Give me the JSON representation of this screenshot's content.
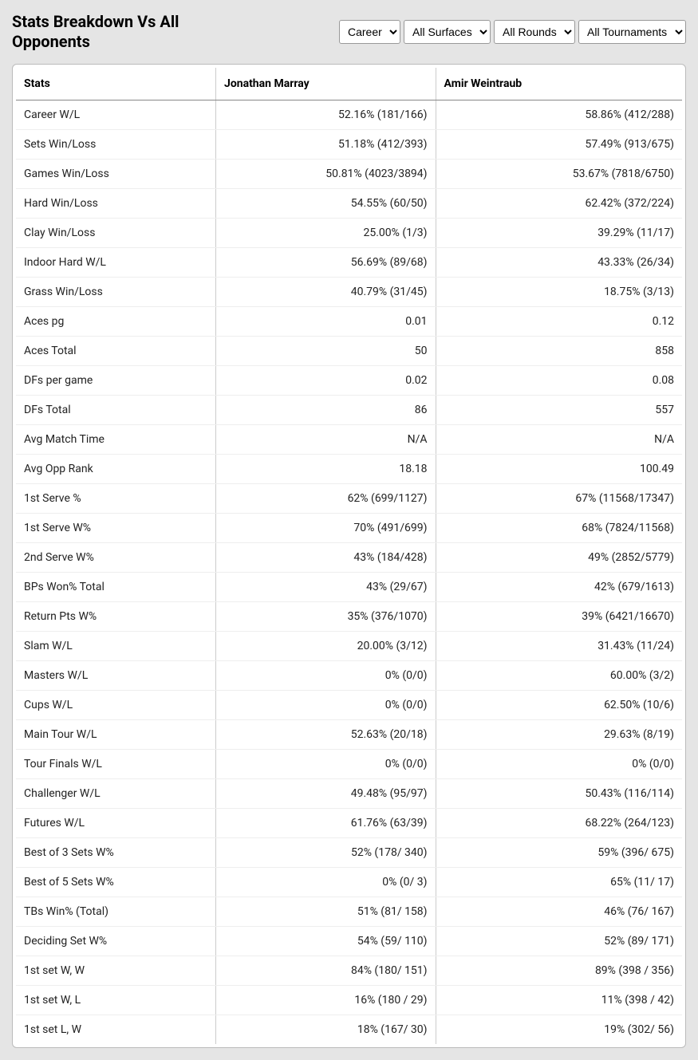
{
  "title": "Stats Breakdown Vs All Opponents",
  "filters": {
    "period": {
      "selected": "Career",
      "options": [
        "Career"
      ]
    },
    "surface": {
      "selected": "All Surfaces",
      "options": [
        "All Surfaces"
      ]
    },
    "round": {
      "selected": "All Rounds",
      "options": [
        "All Rounds"
      ]
    },
    "tournament": {
      "selected": "All Tournaments",
      "options": [
        "All Tournaments"
      ]
    }
  },
  "columns": {
    "stats": "Stats",
    "player1": "Jonathan Marray",
    "player2": "Amir Weintraub"
  },
  "rows": [
    {
      "label": "Career W/L",
      "p1": "52.16% (181/166)",
      "p2": "58.86% (412/288)"
    },
    {
      "label": "Sets Win/Loss",
      "p1": "51.18% (412/393)",
      "p2": "57.49% (913/675)"
    },
    {
      "label": "Games Win/Loss",
      "p1": "50.81% (4023/3894)",
      "p2": "53.67% (7818/6750)"
    },
    {
      "label": "Hard Win/Loss",
      "p1": "54.55% (60/50)",
      "p2": "62.42% (372/224)"
    },
    {
      "label": "Clay Win/Loss",
      "p1": "25.00% (1/3)",
      "p2": "39.29% (11/17)"
    },
    {
      "label": "Indoor Hard W/L",
      "p1": "56.69% (89/68)",
      "p2": "43.33% (26/34)"
    },
    {
      "label": "Grass Win/Loss",
      "p1": "40.79% (31/45)",
      "p2": "18.75% (3/13)"
    },
    {
      "label": "Aces pg",
      "p1": "0.01",
      "p2": "0.12"
    },
    {
      "label": "Aces Total",
      "p1": "50",
      "p2": "858"
    },
    {
      "label": "DFs per game",
      "p1": "0.02",
      "p2": "0.08"
    },
    {
      "label": "DFs Total",
      "p1": "86",
      "p2": "557"
    },
    {
      "label": "Avg Match Time",
      "p1": "N/A",
      "p2": "N/A"
    },
    {
      "label": "Avg Opp Rank",
      "p1": "18.18",
      "p2": "100.49"
    },
    {
      "label": "1st Serve %",
      "p1": "62% (699/1127)",
      "p2": "67% (11568/17347)"
    },
    {
      "label": "1st Serve W%",
      "p1": "70% (491/699)",
      "p2": "68% (7824/11568)"
    },
    {
      "label": "2nd Serve W%",
      "p1": "43% (184/428)",
      "p2": "49% (2852/5779)"
    },
    {
      "label": "BPs Won% Total",
      "p1": "43% (29/67)",
      "p2": "42% (679/1613)"
    },
    {
      "label": "Return Pts W%",
      "p1": "35% (376/1070)",
      "p2": "39% (6421/16670)"
    },
    {
      "label": "Slam W/L",
      "p1": "20.00% (3/12)",
      "p2": "31.43% (11/24)"
    },
    {
      "label": "Masters W/L",
      "p1": "0% (0/0)",
      "p2": "60.00% (3/2)"
    },
    {
      "label": "Cups W/L",
      "p1": "0% (0/0)",
      "p2": "62.50% (10/6)"
    },
    {
      "label": "Main Tour W/L",
      "p1": "52.63% (20/18)",
      "p2": "29.63% (8/19)"
    },
    {
      "label": "Tour Finals W/L",
      "p1": "0% (0/0)",
      "p2": "0% (0/0)"
    },
    {
      "label": "Challenger W/L",
      "p1": "49.48% (95/97)",
      "p2": "50.43% (116/114)"
    },
    {
      "label": "Futures W/L",
      "p1": "61.76% (63/39)",
      "p2": "68.22% (264/123)"
    },
    {
      "label": "Best of 3 Sets W%",
      "p1": "52% (178/ 340)",
      "p2": "59% (396/ 675)"
    },
    {
      "label": "Best of 5 Sets W%",
      "p1": "0% (0/ 3)",
      "p2": "65% (11/ 17)"
    },
    {
      "label": "TBs Win% (Total)",
      "p1": "51% (81/ 158)",
      "p2": "46% (76/ 167)"
    },
    {
      "label": "Deciding Set W%",
      "p1": "54% (59/ 110)",
      "p2": "52% (89/ 171)"
    },
    {
      "label": "1st set W, W",
      "p1": "84% (180/ 151)",
      "p2": "89% (398 / 356)"
    },
    {
      "label": "1st set W, L",
      "p1": "16% (180 / 29)",
      "p2": "11% (398 / 42)"
    },
    {
      "label": "1st set L, W",
      "p1": "18% (167/ 30)",
      "p2": "19% (302/ 56)"
    }
  ],
  "style": {
    "background": "#e5e5e5",
    "table_bg": "#ffffff",
    "header_border": "#888888",
    "row_border": "#eeeeee",
    "col_border": "#cccccc",
    "title_fontsize": 20,
    "cell_fontsize": 14
  }
}
